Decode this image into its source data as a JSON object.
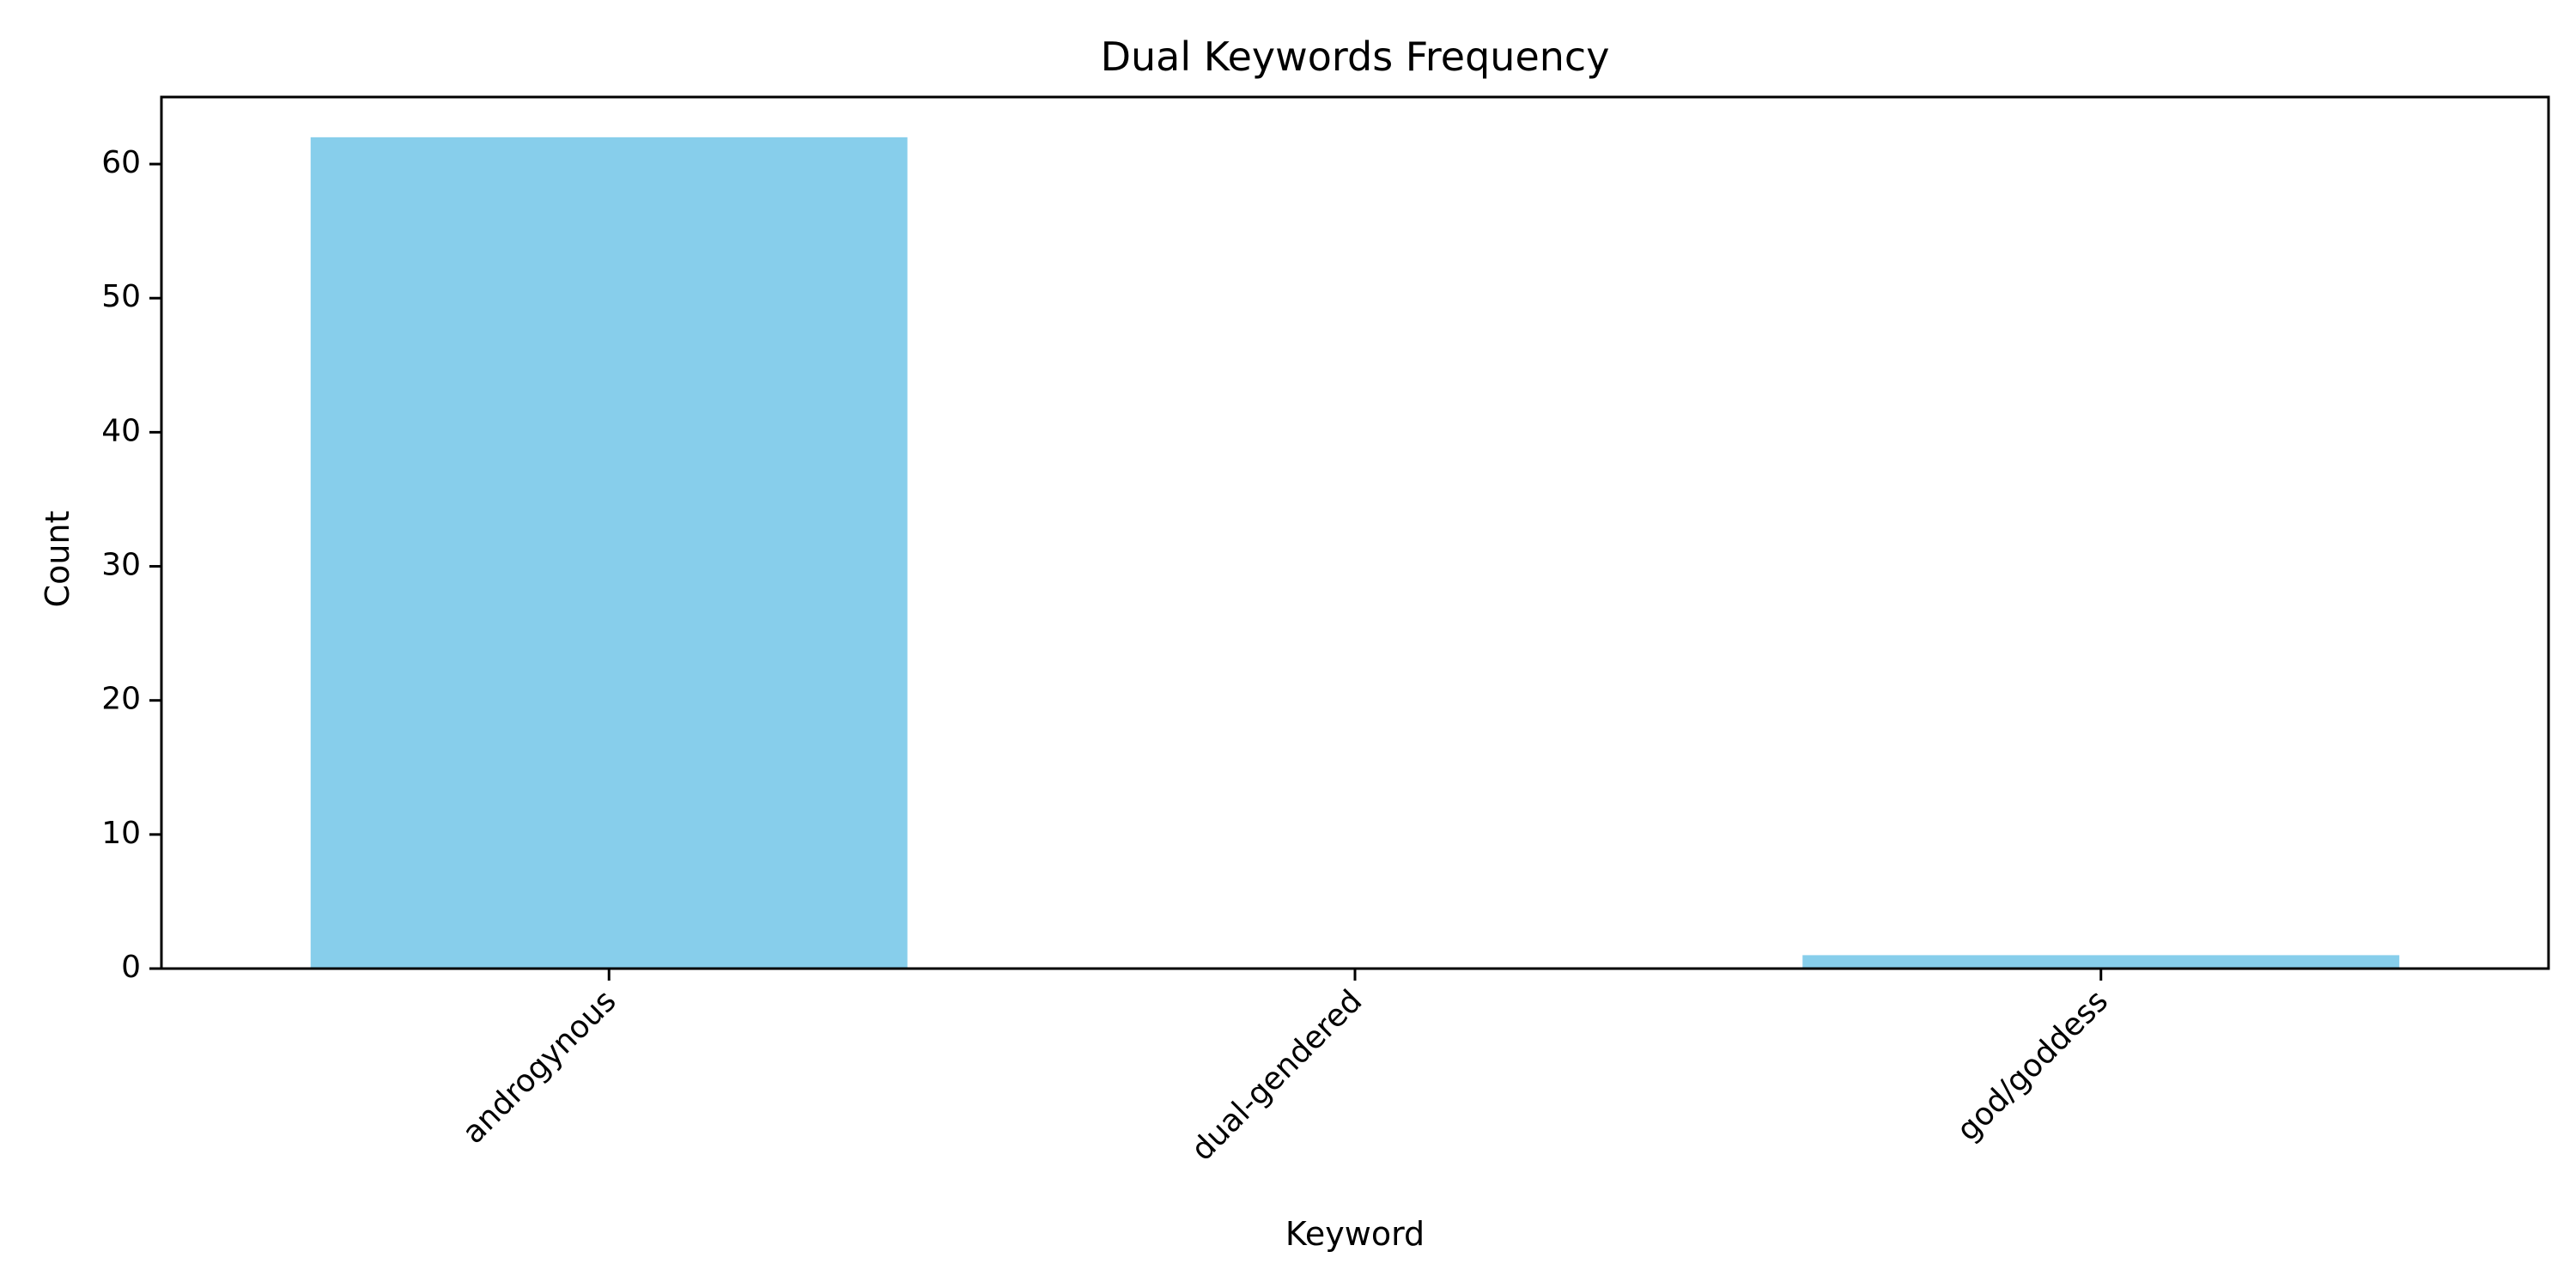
{
  "chart_data": {
    "type": "bar",
    "title": "Dual Keywords Frequency",
    "xlabel": "Keyword",
    "ylabel": "Count",
    "categories": [
      "androgynous",
      "dual-gendered",
      "god/goddess"
    ],
    "values": [
      62,
      0,
      1
    ],
    "ylim": [
      0,
      65
    ],
    "yticks": [
      0,
      10,
      20,
      30,
      40,
      50,
      60
    ],
    "bar_color": "#87CEEB",
    "grid": false,
    "legend": "none"
  }
}
